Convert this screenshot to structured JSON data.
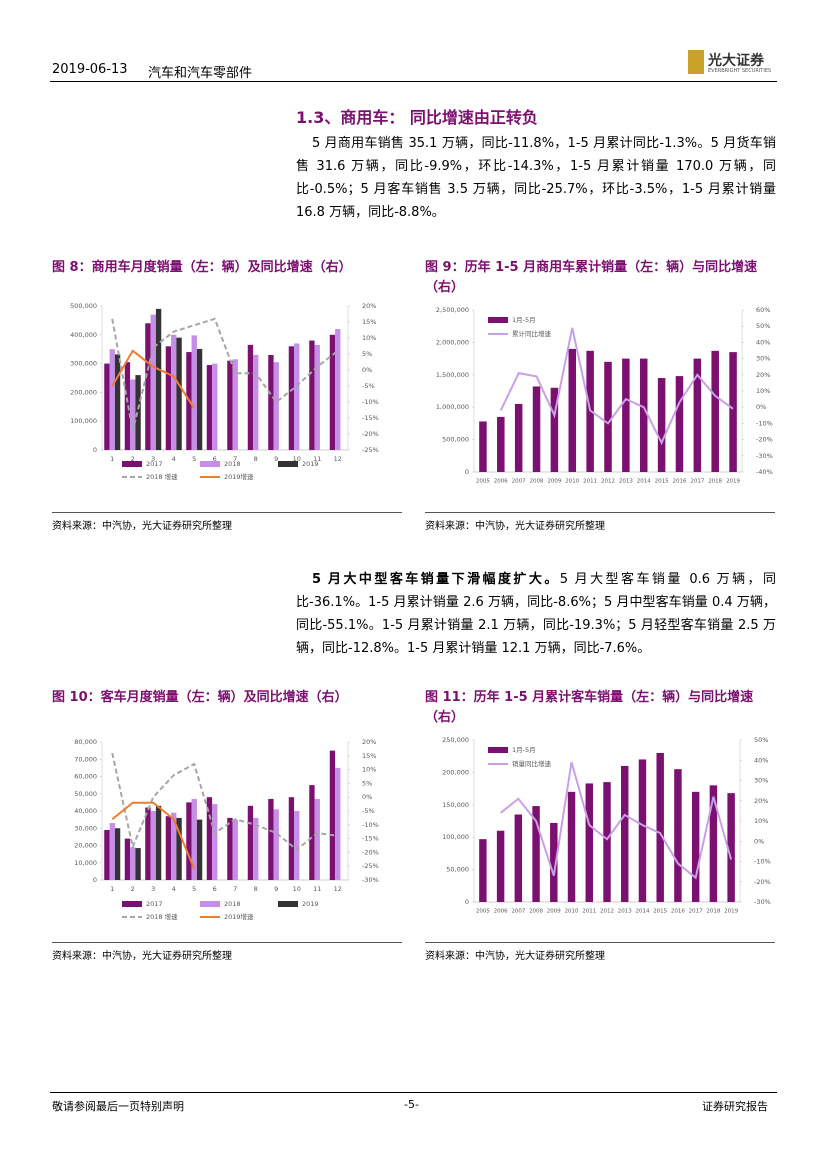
{
  "document": {
    "header": {
      "date": "2019-06-13",
      "title": "汽车和汽车零部件",
      "brand": "光大证券",
      "brand_en": "EVERBRIGHT SECURITIES"
    },
    "section_title": "1.3、商用车： 同比增速由正转负",
    "paragraph_1": "5 月商用车销售 35.1 万辆，同比-11.8%，1-5 月累计同比-1.3%。5 月货车销售 31.6 万辆，同比-9.9%，环比-14.3%，1-5 月累计销量 170.0 万辆，同比-0.5%；5 月客车销售 3.5 万辆，同比-25.7%，环比-3.5%，1-5 月累计销量 16.8 万辆，同比-8.8%。",
    "paragraph_2_lead": "5 月大中型客车销量下滑幅度扩大。",
    "paragraph_2": "5 月大型客车销量 0.6 万辆，同比-36.1%。1-5 月累计销量 2.6 万辆，同比-8.6%；5 月中型客车销量 0.4 万辆，同比-55.1%。1-5 月累计销量 2.1 万辆，同比-19.3%；5 月轻型客车销量 2.5 万辆，同比-12.8%。1-5 月累计销量 12.1 万辆，同比-7.6%。",
    "footer": {
      "left": "敬请参阅最后一页特别声明",
      "page": "-5-",
      "right": "证券研究报告"
    }
  },
  "chart_data": [
    {
      "type": "bar",
      "title": "图 8：商用车月度销量（左：辆）及同比增速（右）",
      "source": "资料来源：中汽协，光大证券研究所整理",
      "legend": "bottom",
      "grid": false,
      "categories": [
        "1",
        "2",
        "3",
        "4",
        "5",
        "6",
        "7",
        "8",
        "9",
        "10",
        "11",
        "12"
      ],
      "series": [
        {
          "name": "2017",
          "color": "#7b1070",
          "values": [
            300000,
            305000,
            440000,
            360000,
            340000,
            295000,
            310000,
            365000,
            330000,
            360000,
            380000,
            400000
          ]
        },
        {
          "name": "2018",
          "color": "#c58fe8",
          "values": [
            350000,
            245000,
            470000,
            400000,
            398000,
            300000,
            315000,
            330000,
            305000,
            370000,
            365000,
            420000
          ]
        },
        {
          "name": "2019",
          "color": "#333333",
          "values": [
            332000,
            260000,
            490000,
            390000,
            351000,
            null,
            null,
            null,
            null,
            null,
            null,
            null
          ]
        },
        {
          "name": "2018 增速",
          "type": "line",
          "axis": "y2",
          "dash": true,
          "color": "#a6a6a6",
          "values": [
            16,
            -19,
            7,
            12,
            14,
            16,
            -1,
            -1,
            -10,
            -5,
            1,
            6
          ]
        },
        {
          "name": "2019增速",
          "type": "line",
          "axis": "y2",
          "color": "#ed7d31",
          "values": [
            -5,
            6,
            1,
            -2,
            -12,
            null,
            null,
            null,
            null,
            null,
            null,
            null
          ]
        }
      ],
      "ylim": [
        0,
        500000
      ],
      "yticks": [
        {
          "value": 0,
          "label": "0"
        },
        {
          "value": 100000,
          "label": "100,000"
        },
        {
          "value": 200000,
          "label": "200,000"
        },
        {
          "value": 300000,
          "label": "300,000"
        },
        {
          "value": 400000,
          "label": "400,000"
        },
        {
          "value": 500000,
          "label": "500,000"
        }
      ],
      "y2lim": [
        -25,
        20
      ],
      "y2ticks": [
        {
          "value": 20,
          "label": "20%"
        },
        {
          "value": 15,
          "label": "15%"
        },
        {
          "value": 10,
          "label": "10%"
        },
        {
          "value": 5,
          "label": "5%"
        },
        {
          "value": 0,
          "label": "0%"
        },
        {
          "value": -5,
          "label": "-5%"
        },
        {
          "value": -10,
          "label": "-10%"
        },
        {
          "value": -15,
          "label": "-15%"
        },
        {
          "value": -20,
          "label": "-20%"
        },
        {
          "value": -25,
          "label": "-25%"
        }
      ]
    },
    {
      "type": "bar",
      "title": "图 9：历年 1-5 月商用车累计销量（左：辆）与同比增速（右）",
      "source": "资料来源：中汽协，光大证券研究所整理",
      "legend": "top-left",
      "grid": false,
      "categories": [
        "2005",
        "2006",
        "2007",
        "2008",
        "2009",
        "2010",
        "2011",
        "2012",
        "2013",
        "2014",
        "2015",
        "2016",
        "2017",
        "2018",
        "2019"
      ],
      "series": [
        {
          "name": "1月-5月",
          "color": "#7b1070",
          "values": [
            780000,
            850000,
            1050000,
            1320000,
            1300000,
            1900000,
            1870000,
            1700000,
            1750000,
            1750000,
            1450000,
            1480000,
            1750000,
            1870000,
            1850000
          ]
        },
        {
          "name": "累计同比增速",
          "type": "line",
          "axis": "y2",
          "color": "#c9a0e8",
          "values": [
            null,
            -2,
            21,
            19,
            -5,
            49,
            -2,
            -10,
            5,
            0,
            -22,
            3,
            20,
            7,
            -1
          ]
        }
      ],
      "ylim": [
        0,
        2500000
      ],
      "yticks": [
        {
          "value": 0,
          "label": "0"
        },
        {
          "value": 500000,
          "label": "500,000"
        },
        {
          "value": 1000000,
          "label": "1,000,000"
        },
        {
          "value": 1500000,
          "label": "1,500,000"
        },
        {
          "value": 2000000,
          "label": "2,000,000"
        },
        {
          "value": 2500000,
          "label": "2,500,000"
        }
      ],
      "y2lim": [
        -40,
        60
      ],
      "y2ticks": [
        {
          "value": 60,
          "label": "60%"
        },
        {
          "value": 50,
          "label": "50%"
        },
        {
          "value": 40,
          "label": "40%"
        },
        {
          "value": 30,
          "label": "30%"
        },
        {
          "value": 20,
          "label": "20%"
        },
        {
          "value": 10,
          "label": "10%"
        },
        {
          "value": 0,
          "label": "0%"
        },
        {
          "value": -10,
          "label": "-10%"
        },
        {
          "value": -20,
          "label": "-20%"
        },
        {
          "value": -30,
          "label": "-30%"
        },
        {
          "value": -40,
          "label": "-40%"
        }
      ]
    },
    {
      "type": "bar",
      "title": "图 10：客车月度销量（左：辆）及同比增速（右）",
      "source": "资料来源：中汽协，光大证券研究所整理",
      "legend": "bottom",
      "grid": false,
      "categories": [
        "1",
        "2",
        "3",
        "4",
        "5",
        "6",
        "7",
        "8",
        "9",
        "10",
        "11",
        "12"
      ],
      "series": [
        {
          "name": "2017",
          "color": "#7b1070",
          "values": [
            29000,
            24000,
            42000,
            37000,
            45000,
            48000,
            36000,
            43000,
            47000,
            48000,
            55000,
            75000
          ]
        },
        {
          "name": "2018",
          "color": "#c58fe8",
          "values": [
            33000,
            19000,
            40000,
            39000,
            47000,
            44000,
            35000,
            36000,
            41000,
            40000,
            47000,
            65000
          ]
        },
        {
          "name": "2019",
          "color": "#333333",
          "values": [
            30000,
            18500,
            43000,
            36000,
            35000,
            null,
            null,
            null,
            null,
            null,
            null,
            null
          ]
        },
        {
          "name": "2018 增速",
          "type": "line",
          "axis": "y2",
          "dash": true,
          "color": "#a6a6a6",
          "values": [
            16,
            -18,
            0,
            8,
            12,
            -13,
            -8,
            -10,
            -13,
            -19,
            -13,
            -14
          ]
        },
        {
          "name": "2019增速",
          "type": "line",
          "axis": "y2",
          "color": "#ed7d31",
          "values": [
            -8,
            -2,
            -2,
            -8,
            -26,
            null,
            null,
            null,
            null,
            null,
            null,
            null
          ]
        }
      ],
      "ylim": [
        0,
        80000
      ],
      "yticks": [
        {
          "value": 0,
          "label": "0"
        },
        {
          "value": 10000,
          "label": "10,000"
        },
        {
          "value": 20000,
          "label": "20,000"
        },
        {
          "value": 30000,
          "label": "30,000"
        },
        {
          "value": 40000,
          "label": "40,000"
        },
        {
          "value": 50000,
          "label": "50,000"
        },
        {
          "value": 60000,
          "label": "60,000"
        },
        {
          "value": 70000,
          "label": "70,000"
        },
        {
          "value": 80000,
          "label": "80,000"
        }
      ],
      "y2lim": [
        -30,
        20
      ],
      "y2ticks": [
        {
          "value": 20,
          "label": "20%"
        },
        {
          "value": 15,
          "label": "15%"
        },
        {
          "value": 10,
          "label": "10%"
        },
        {
          "value": 5,
          "label": "5%"
        },
        {
          "value": 0,
          "label": "0%"
        },
        {
          "value": -5,
          "label": "-5%"
        },
        {
          "value": -10,
          "label": "-10%"
        },
        {
          "value": -15,
          "label": "-15%"
        },
        {
          "value": -20,
          "label": "-20%"
        },
        {
          "value": -25,
          "label": "-25%"
        },
        {
          "value": -30,
          "label": "-30%"
        }
      ]
    },
    {
      "type": "bar",
      "title": "图 11：历年 1-5 月累计客车销量（左：辆）与同比增速（右）",
      "source": "资料来源：中汽协，光大证券研究所整理",
      "legend": "top-left",
      "grid": false,
      "categories": [
        "2005",
        "2006",
        "2007",
        "2008",
        "2009",
        "2010",
        "2011",
        "2012",
        "2013",
        "2014",
        "2015",
        "2016",
        "2017",
        "2018",
        "2019"
      ],
      "series": [
        {
          "name": "1月-5月",
          "color": "#7b1070",
          "values": [
            97000,
            110000,
            135000,
            148000,
            122000,
            170000,
            183000,
            185000,
            210000,
            220000,
            230000,
            205000,
            170000,
            180000,
            168000
          ]
        },
        {
          "name": "销量同比增速",
          "type": "line",
          "axis": "y2",
          "color": "#c9a0e8",
          "values": [
            null,
            14,
            21,
            10,
            -17,
            39,
            8,
            1,
            13,
            8,
            4,
            -11,
            -18,
            22,
            -9
          ]
        }
      ],
      "ylim": [
        0,
        250000
      ],
      "yticks": [
        {
          "value": 0,
          "label": "0"
        },
        {
          "value": 50000,
          "label": "50,000"
        },
        {
          "value": 100000,
          "label": "100,000"
        },
        {
          "value": 150000,
          "label": "150,000"
        },
        {
          "value": 200000,
          "label": "200,000"
        },
        {
          "value": 250000,
          "label": "250,000"
        }
      ],
      "y2lim": [
        -30,
        50
      ],
      "y2ticks": [
        {
          "value": 50,
          "label": "50%"
        },
        {
          "value": 40,
          "label": "40%"
        },
        {
          "value": 30,
          "label": "30%"
        },
        {
          "value": 20,
          "label": "20%"
        },
        {
          "value": 10,
          "label": "10%"
        },
        {
          "value": 0,
          "label": "0%"
        },
        {
          "value": -10,
          "label": "-10%"
        },
        {
          "value": -20,
          "label": "-20%"
        },
        {
          "value": -30,
          "label": "-30%"
        }
      ]
    }
  ]
}
